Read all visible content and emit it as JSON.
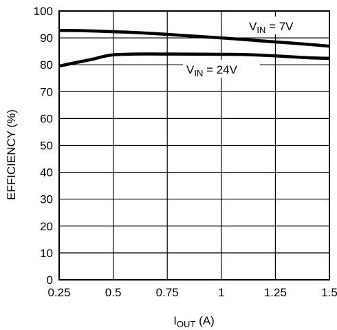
{
  "chart_data": {
    "type": "line",
    "xlabel": {
      "main": "I",
      "sub": "OUT",
      "rest": " (A)"
    },
    "ylabel": "EFFICIENCY (%)",
    "xlim": [
      0.25,
      1.5
    ],
    "ylim": [
      0,
      100
    ],
    "x_ticks": [
      "0.25",
      "0.5",
      "0.75",
      "1",
      "1.25",
      "1.5"
    ],
    "y_ticks": [
      "0",
      "10",
      "20",
      "30",
      "40",
      "50",
      "60",
      "70",
      "80",
      "90",
      "100"
    ],
    "grid": true,
    "series": [
      {
        "name": "VIN = 7V",
        "x": [
          0.25,
          0.35,
          0.5,
          0.6,
          0.75,
          0.9,
          1.0,
          1.1,
          1.25,
          1.4,
          1.5
        ],
        "y": [
          92.8,
          92.7,
          92.3,
          92.0,
          91.3,
          90.5,
          90.0,
          89.4,
          88.5,
          87.6,
          86.9
        ]
      },
      {
        "name": "VIN = 24V",
        "x": [
          0.25,
          0.32,
          0.4,
          0.45,
          0.5,
          0.6,
          0.75,
          1.0,
          1.1,
          1.25,
          1.4,
          1.5
        ],
        "y": [
          79.5,
          80.7,
          82.0,
          83.0,
          83.7,
          84.0,
          84.0,
          83.9,
          83.8,
          83.3,
          82.6,
          82.4
        ]
      }
    ],
    "annotations": [
      {
        "main": "V",
        "sub": "IN",
        "rest": " = 7V"
      },
      {
        "main": "V",
        "sub": "IN",
        "rest": " = 24V"
      }
    ]
  }
}
